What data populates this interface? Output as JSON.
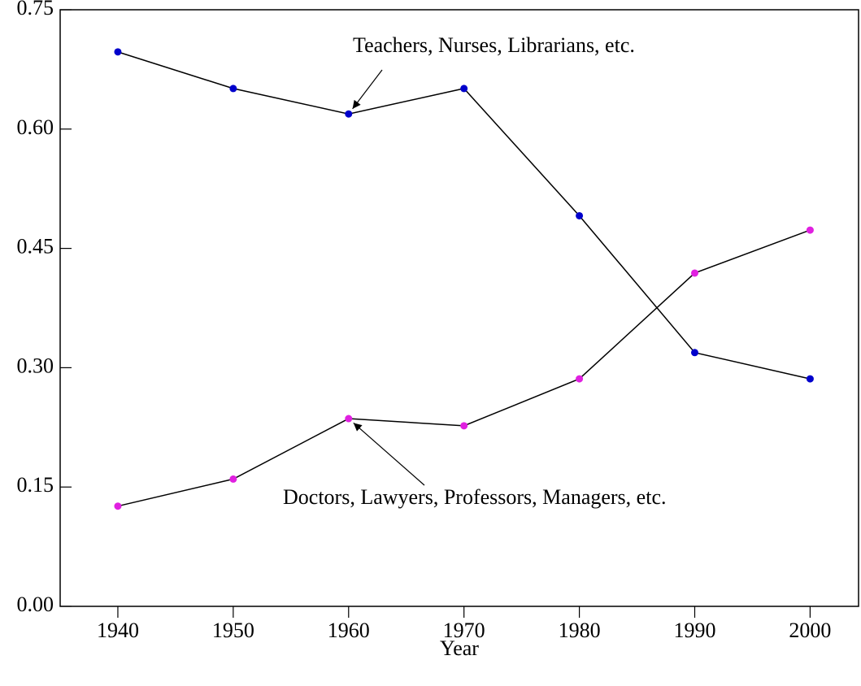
{
  "chart_data": {
    "type": "line",
    "xlabel": "Year",
    "x": [
      1940,
      1950,
      1960,
      1970,
      1980,
      1990,
      2000
    ],
    "series": [
      {
        "name": "Teachers, Nurses, Librarians, etc.",
        "color": "#0000cc",
        "values": [
          0.697,
          0.651,
          0.619,
          0.651,
          0.491,
          0.319,
          0.286
        ]
      },
      {
        "name": "Doctors, Lawyers, Professors, Managers, etc.",
        "color": "#e020e0",
        "values": [
          0.126,
          0.16,
          0.236,
          0.227,
          0.286,
          0.419,
          0.473
        ]
      }
    ],
    "xlim": [
      1935,
      2004.2
    ],
    "xticks": [
      1940,
      1950,
      1960,
      1970,
      1980,
      1990,
      2000
    ],
    "ylim": [
      0,
      0.75
    ],
    "yticks": [
      {
        "value": 0,
        "label": "0.00"
      },
      {
        "value": 0.15,
        "label": "0.15"
      },
      {
        "value": 0.3,
        "label": "0.30"
      },
      {
        "value": 0.45,
        "label": "0.45"
      },
      {
        "value": 0.6,
        "label": "0.60"
      },
      {
        "value": 0.75,
        "label": "0.75"
      }
    ],
    "grid": false
  }
}
